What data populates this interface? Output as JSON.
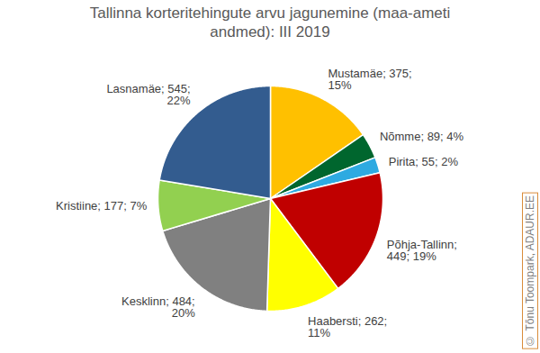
{
  "chart_data": {
    "type": "pie",
    "title": "Tallinna korteritehingute arvu jagunemine (maa-ameti andmed): III 2019",
    "categories": [
      "Mustamäe",
      "Nõmme",
      "Pirita",
      "Põhja-Tallinn",
      "Haabersti",
      "Kesklinn",
      "Kristiine",
      "Lasnamäe"
    ],
    "values": [
      375,
      89,
      55,
      449,
      262,
      484,
      177,
      545
    ],
    "value_labels": [
      "Mustamäe; 375;\n15%",
      "Nõmme; 89; 4%",
      "Pirita; 55; 2%",
      "Põhja-Tallinn;\n449; 19%",
      "Haabersti; 262;\n11%",
      "Kesklinn; 484;\n20%",
      "Kristiine; 177; 7%",
      "Lasnamäe; 545;\n22%"
    ],
    "colors": [
      "#ffc000",
      "#00662e",
      "#2eaae1",
      "#c00000",
      "#ffff00",
      "#808080",
      "#92d050",
      "#335c8f"
    ],
    "data_labels": true,
    "credit": "© Tõnu Toompark, ADAUR.EE"
  }
}
